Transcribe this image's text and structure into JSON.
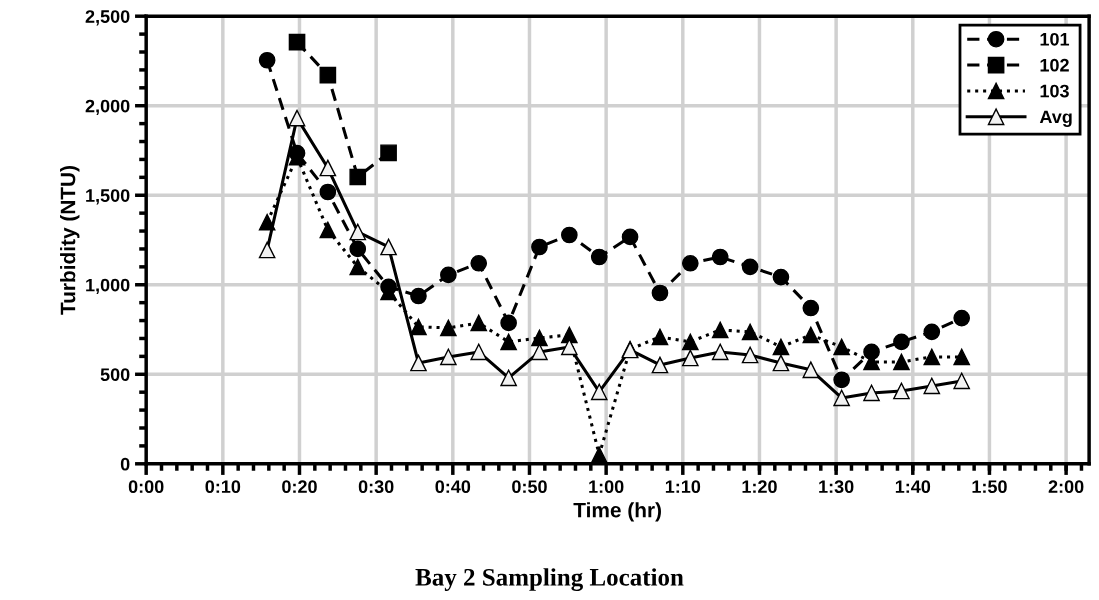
{
  "chart_data": {
    "type": "line",
    "title": "Bay 2 Sampling Location",
    "xlabel": "Time (hr)",
    "ylabel": "Turbidity (NTU)",
    "x": [
      0.263,
      0.328,
      0.395,
      0.46,
      0.527,
      0.592,
      0.657,
      0.723,
      0.788,
      0.855,
      0.92,
      0.985,
      1.052,
      1.117,
      1.183,
      1.248,
      1.313,
      1.38,
      1.445,
      1.512,
      1.577,
      1.642,
      1.708,
      1.773
    ],
    "series": [
      {
        "name": "101",
        "color": "#000000",
        "marker": "circle",
        "line_style": "dashed",
        "values": [
          2254,
          1735,
          1518,
          1200,
          988,
          937,
          1055,
          1120,
          787,
          1211,
          1278,
          1155,
          1267,
          954,
          1120,
          1155,
          1100,
          1043,
          870,
          469,
          625,
          681,
          737,
          814
        ]
      },
      {
        "name": "102",
        "color": "#000000",
        "marker": "square",
        "line_style": "dashed",
        "x": [
          0.328,
          0.395,
          0.46,
          0.527
        ],
        "values": [
          2355,
          2171,
          1602,
          1737
        ]
      },
      {
        "name": "103",
        "color": "#000000",
        "marker": "triangle",
        "line_style": "dotted",
        "values": [
          1350,
          1713,
          1306,
          1100,
          960,
          765,
          759,
          787,
          681,
          703,
          720,
          50,
          640,
          709,
          681,
          748,
          737,
          653,
          720,
          653,
          569,
          569,
          597,
          597
        ]
      },
      {
        "name": "Avg",
        "color": "#000000",
        "marker": "triangle",
        "line_style": "solid",
        "values": [
          1194,
          1931,
          1652,
          1295,
          1211,
          563,
          597,
          625,
          480,
          625,
          653,
          402,
          636,
          552,
          591,
          625,
          608,
          563,
          525,
          368,
          396,
          407,
          435,
          463
        ]
      }
    ],
    "xlim": [
      0,
      2.05
    ],
    "xticks": [
      {
        "value": 0,
        "label": "0:00"
      },
      {
        "value": 0.16667,
        "label": "0:10"
      },
      {
        "value": 0.33333,
        "label": "0:20"
      },
      {
        "value": 0.5,
        "label": "0:30"
      },
      {
        "value": 0.66667,
        "label": "0:40"
      },
      {
        "value": 0.83333,
        "label": "0:50"
      },
      {
        "value": 1,
        "label": "1:00"
      },
      {
        "value": 1.16667,
        "label": "1:10"
      },
      {
        "value": 1.33333,
        "label": "1:20"
      },
      {
        "value": 1.5,
        "label": "1:30"
      },
      {
        "value": 1.66667,
        "label": "1:40"
      },
      {
        "value": 1.83333,
        "label": "1:50"
      },
      {
        "value": 2,
        "label": "2:00"
      }
    ],
    "ylim": [
      0,
      2500
    ],
    "yticks": [
      0,
      {
        "value": 500,
        "label": "500"
      },
      {
        "value": 1000,
        "label": "1,000"
      },
      {
        "value": 1500,
        "label": "1,500"
      },
      {
        "value": 2000,
        "label": "2,000"
      },
      {
        "value": 2500,
        "label": "2,500"
      }
    ],
    "grid": true,
    "legend": "top right"
  }
}
